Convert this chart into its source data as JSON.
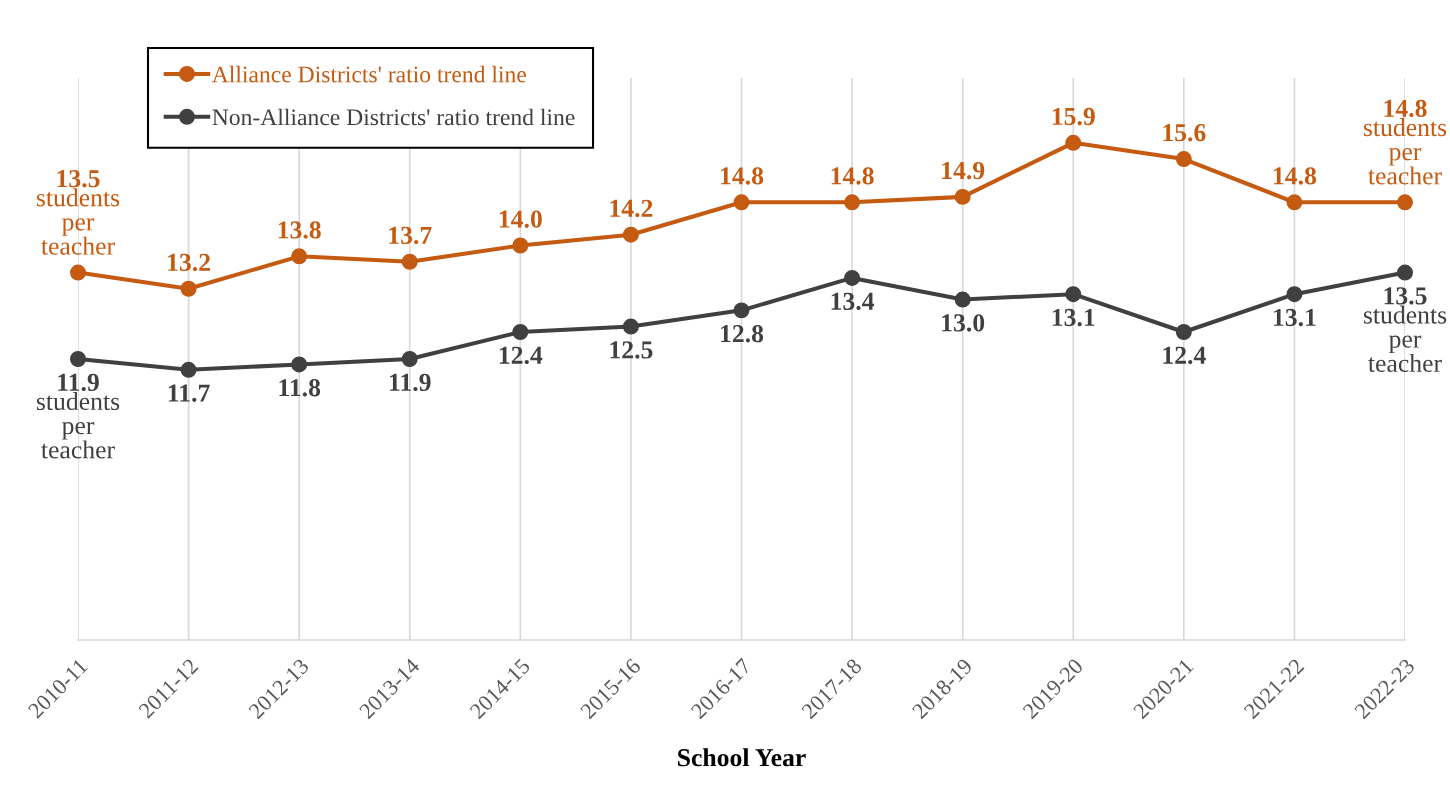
{
  "chart_data": {
    "type": "line",
    "xlabel": "School Year",
    "categories": [
      "2010-11",
      "2011-12",
      "2012-13",
      "2013-14",
      "2014-15",
      "2015-16",
      "2016-17",
      "2017-18",
      "2018-19",
      "2019-20",
      "2020-21",
      "2021-22",
      "2022-23"
    ],
    "series": [
      {
        "name": "Alliance Districts' ratio trend line",
        "color": "#c55a11",
        "values": [
          13.5,
          13.2,
          13.8,
          13.7,
          14.0,
          14.2,
          14.8,
          14.8,
          14.9,
          15.9,
          15.6,
          14.8,
          14.8
        ],
        "value_labels": [
          "13.5\nstudents\nper\nteacher",
          "13.2",
          "13.8",
          "13.7",
          "14.0",
          "14.2",
          "14.8",
          "14.8",
          "14.9",
          "15.9",
          "15.6",
          "14.8",
          "14.8\nstudents\nper\nteacher"
        ]
      },
      {
        "name": "Non-Alliance Districts' ratio trend line",
        "color": "#404040",
        "values": [
          11.9,
          11.7,
          11.8,
          11.9,
          12.4,
          12.5,
          12.8,
          13.4,
          13.0,
          13.1,
          12.4,
          13.1,
          13.5
        ],
        "value_labels": [
          "11.9\nstudents\nper\nteacher",
          "11.7",
          "11.8",
          "11.9",
          "12.4",
          "12.5",
          "12.8",
          "13.4",
          "13.0",
          "13.1",
          "12.4",
          "13.1",
          "13.5\nstudents\nper\nteacher"
        ]
      }
    ],
    "ylim": [
      6.7,
      17.1
    ],
    "grid": "x",
    "legend": "top left",
    "marker": "circle",
    "line_style": "solid",
    "tick_labels": "x"
  }
}
